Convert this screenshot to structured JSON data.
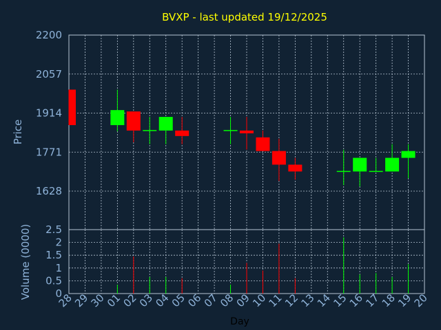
{
  "chart_data": [
    {
      "type": "candlestick",
      "title": "BVXP - last updated 19/12/2025",
      "ylabel": "Price",
      "ylim": [
        1628,
        2200
      ],
      "yticks": [
        1628,
        1771,
        1914,
        2057,
        2200
      ],
      "grid": true,
      "colors": {
        "up": "#00ff00",
        "down": "#ff0000",
        "doji": "#00ff00"
      },
      "categories": [
        "28",
        "29",
        "30",
        "01",
        "02",
        "03",
        "04",
        "05",
        "06",
        "07",
        "08",
        "09",
        "10",
        "11",
        "12",
        "13",
        "14",
        "15",
        "16",
        "17",
        "18",
        "19",
        "20"
      ],
      "candles": [
        {
          "day": "28",
          "open": 2000,
          "high": 2000,
          "low": 1870,
          "close": 1870
        },
        {
          "day": "01",
          "open": 1870,
          "high": 2000,
          "low": 1847,
          "close": 1925
        },
        {
          "day": "02",
          "open": 1920,
          "high": 1920,
          "low": 1807,
          "close": 1850
        },
        {
          "day": "03",
          "open": 1850,
          "high": 1900,
          "low": 1800,
          "close": 1850
        },
        {
          "day": "04",
          "open": 1850,
          "high": 1900,
          "low": 1800,
          "close": 1900
        },
        {
          "day": "05",
          "open": 1850,
          "high": 1900,
          "low": 1800,
          "close": 1830
        },
        {
          "day": "08",
          "open": 1850,
          "high": 1900,
          "low": 1800,
          "close": 1850
        },
        {
          "day": "09",
          "open": 1850,
          "high": 1900,
          "low": 1780,
          "close": 1840
        },
        {
          "day": "10",
          "open": 1825,
          "high": 1850,
          "low": 1775,
          "close": 1775
        },
        {
          "day": "11",
          "open": 1775,
          "high": 1820,
          "low": 1665,
          "close": 1725
        },
        {
          "day": "12",
          "open": 1725,
          "high": 1750,
          "low": 1670,
          "close": 1700
        },
        {
          "day": "15",
          "open": 1700,
          "high": 1780,
          "low": 1650,
          "close": 1700
        },
        {
          "day": "16",
          "open": 1700,
          "high": 1750,
          "low": 1645,
          "close": 1750
        },
        {
          "day": "17",
          "open": 1700,
          "high": 1750,
          "low": 1700,
          "close": 1700
        },
        {
          "day": "18",
          "open": 1700,
          "high": 1800,
          "low": 1700,
          "close": 1750
        },
        {
          "day": "19",
          "open": 1750,
          "high": 1800,
          "low": 1675,
          "close": 1775
        }
      ]
    },
    {
      "type": "bar",
      "xlabel": "Day",
      "ylabel": "Volume (0000)",
      "ylim": [
        0,
        2.5
      ],
      "yticks": [
        "0",
        "0.5",
        "1",
        "1.5",
        "2",
        "2.5"
      ],
      "grid": true,
      "categories": [
        "28",
        "29",
        "30",
        "01",
        "02",
        "03",
        "04",
        "05",
        "06",
        "07",
        "08",
        "09",
        "10",
        "11",
        "12",
        "13",
        "14",
        "15",
        "16",
        "17",
        "18",
        "19",
        "20"
      ],
      "bars": [
        {
          "day": "01",
          "value": 0.35,
          "color": "#00ff00"
        },
        {
          "day": "02",
          "value": 1.45,
          "color": "#ff0000"
        },
        {
          "day": "03",
          "value": 0.65,
          "color": "#00ff00"
        },
        {
          "day": "04",
          "value": 0.65,
          "color": "#00ff00"
        },
        {
          "day": "05",
          "value": 0.6,
          "color": "#ff0000"
        },
        {
          "day": "08",
          "value": 0.35,
          "color": "#00ff00"
        },
        {
          "day": "09",
          "value": 1.2,
          "color": "#ff0000"
        },
        {
          "day": "10",
          "value": 0.9,
          "color": "#ff0000"
        },
        {
          "day": "11",
          "value": 1.95,
          "color": "#ff0000"
        },
        {
          "day": "12",
          "value": 0.6,
          "color": "#ff0000"
        },
        {
          "day": "15",
          "value": 2.2,
          "color": "#00ff00"
        },
        {
          "day": "16",
          "value": 0.75,
          "color": "#00ff00"
        },
        {
          "day": "17",
          "value": 0.8,
          "color": "#00ff00"
        },
        {
          "day": "18",
          "value": 0.65,
          "color": "#00ff00"
        },
        {
          "day": "19",
          "value": 1.15,
          "color": "#00ff00"
        }
      ]
    }
  ]
}
